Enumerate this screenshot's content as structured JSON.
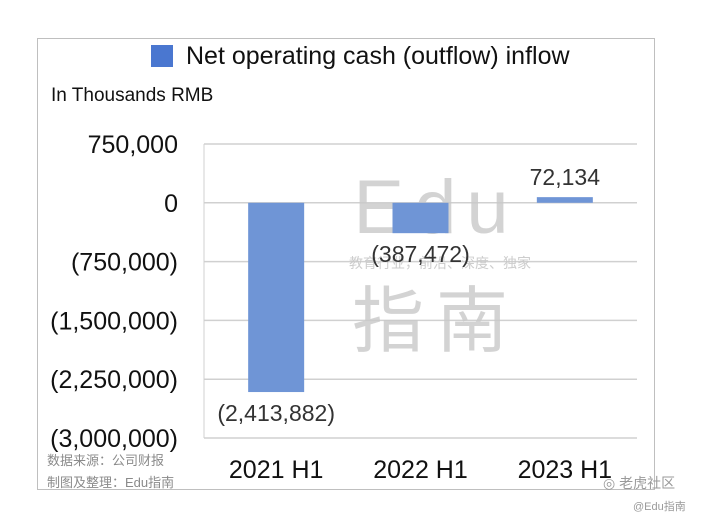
{
  "chart_data": {
    "type": "bar",
    "categories": [
      "2021 H1",
      "2022 H1",
      "2023 H1"
    ],
    "series": [
      {
        "name": "Net operating cash (outflow) inflow",
        "values": [
          -2413882,
          -387472,
          72134
        ]
      }
    ],
    "data_labels": [
      "(2,413,882)",
      "(387,472)",
      "72,134"
    ],
    "y_ticks": [
      {
        "value": 750000,
        "label": "750,000"
      },
      {
        "value": 0,
        "label": "0"
      },
      {
        "value": -750000,
        "label": "(750,000)"
      },
      {
        "value": -1500000,
        "label": "(1,500,000)"
      },
      {
        "value": -2250000,
        "label": "(2,250,000)"
      },
      {
        "value": -3000000,
        "label": "(3,000,000)"
      }
    ],
    "ylim": [
      -3000000,
      750000
    ],
    "unit_label": "In Thousands RMB",
    "grid": true,
    "legend_position": "top",
    "bar_color": "#6f95d6",
    "legend_color": "#4a77d0"
  },
  "source_note": [
    "数据来源：公司财报",
    "制图及整理：Edu指南"
  ],
  "watermark": {
    "latin": "Edu",
    "tagline": "教育行业，前沿、深度、独家",
    "cjk": "指南"
  },
  "footer": {
    "community": "老虎社区",
    "handle": "@Edu指南"
  }
}
